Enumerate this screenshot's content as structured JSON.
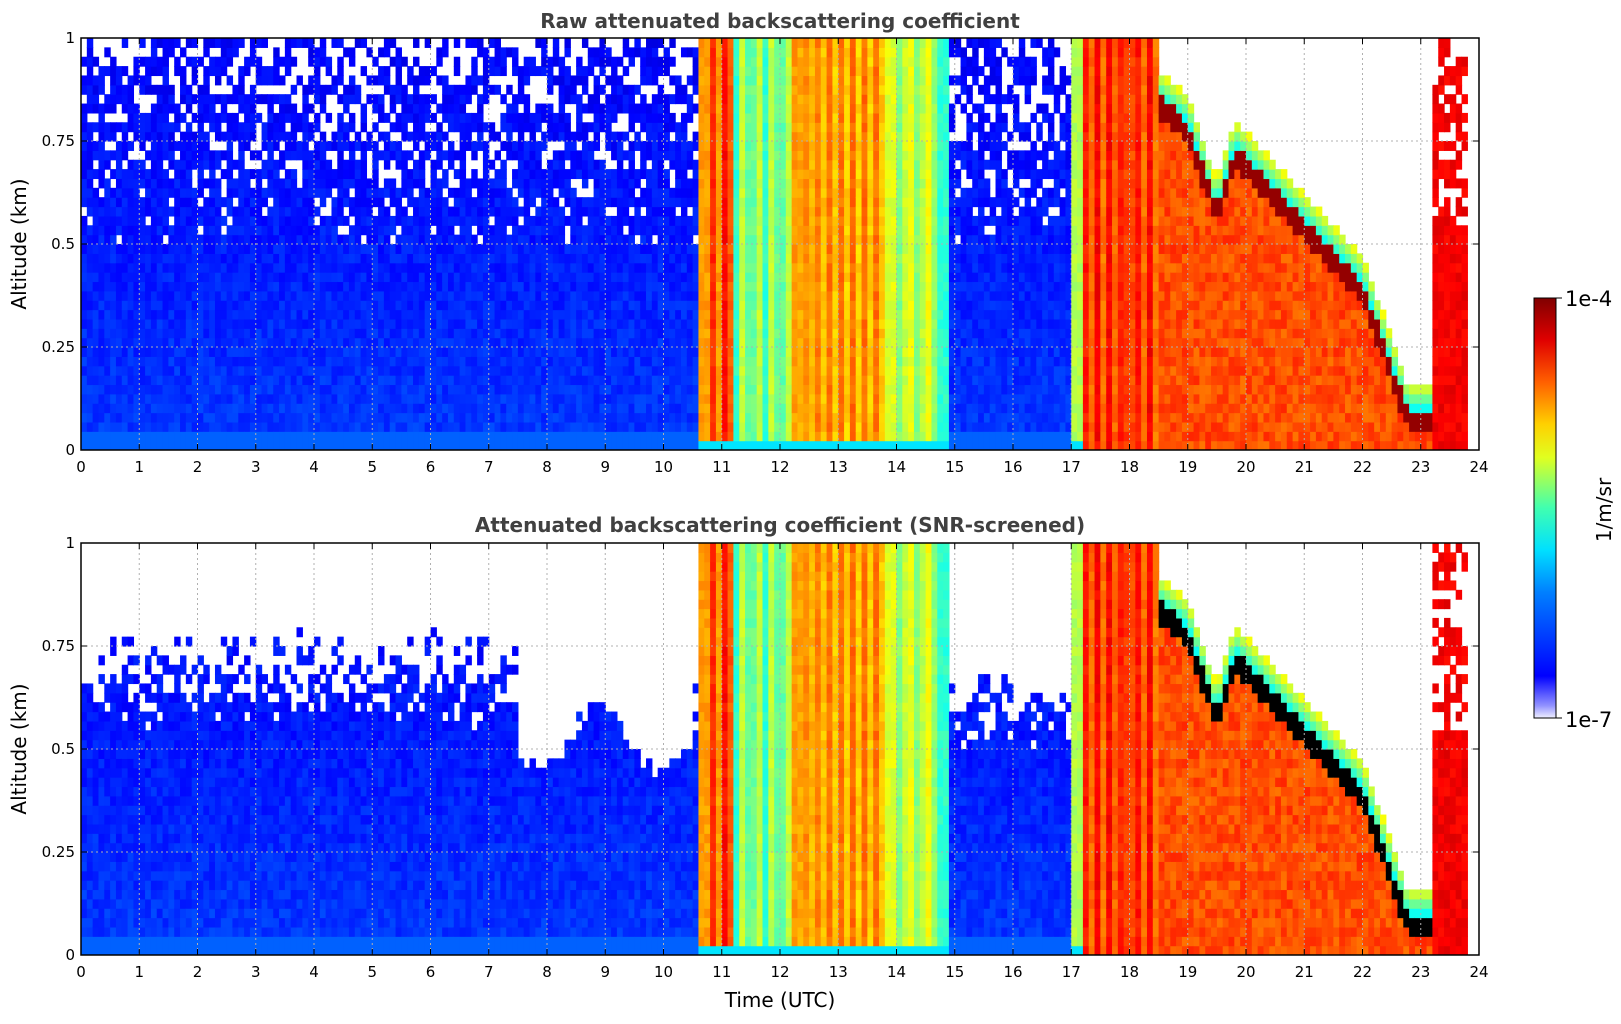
{
  "chart_data": [
    {
      "type": "heatmap",
      "title": "Raw attenuated backscattering coefficient",
      "xlabel": "",
      "ylabel": "Altitude (km)",
      "x_ticks": [
        "0",
        "1",
        "2",
        "3",
        "4",
        "5",
        "6",
        "7",
        "8",
        "9",
        "10",
        "11",
        "12",
        "13",
        "14",
        "15",
        "16",
        "17",
        "18",
        "19",
        "20",
        "21",
        "22",
        "23",
        "24"
      ],
      "y_ticks": [
        "0",
        "0.25",
        "0.5",
        "0.75",
        "1"
      ],
      "xlim": [
        0,
        24
      ],
      "ylim": [
        0,
        1
      ],
      "grid": true,
      "x_unit_values": [
        0,
        1,
        2,
        3,
        4,
        5,
        6,
        7,
        8,
        9,
        10,
        11,
        12,
        13,
        14,
        15,
        16,
        17,
        18,
        19,
        20,
        21,
        22,
        23,
        24
      ],
      "y_unit_values": [
        0,
        0.25,
        0.5,
        0.75,
        1
      ]
    },
    {
      "type": "heatmap",
      "title": "Attenuated backscattering coefficient (SNR-screened)",
      "xlabel": "Time (UTC)",
      "ylabel": "Altitude (km)",
      "x_ticks": [
        "0",
        "1",
        "2",
        "3",
        "4",
        "5",
        "6",
        "7",
        "8",
        "9",
        "10",
        "11",
        "12",
        "13",
        "14",
        "15",
        "16",
        "17",
        "18",
        "19",
        "20",
        "21",
        "22",
        "23",
        "24"
      ],
      "y_ticks": [
        "0",
        "0.25",
        "0.5",
        "0.75",
        "1"
      ],
      "xlim": [
        0,
        24
      ],
      "ylim": [
        0,
        1
      ],
      "grid": true,
      "x_unit_values": [
        0,
        1,
        2,
        3,
        4,
        5,
        6,
        7,
        8,
        9,
        10,
        11,
        12,
        13,
        14,
        15,
        16,
        17,
        18,
        19,
        20,
        21,
        22,
        23,
        24
      ],
      "y_unit_values": [
        0,
        0.25,
        0.5,
        0.75,
        1
      ]
    }
  ],
  "colorbar": {
    "max_label": "1e-4",
    "min_label": "1e-7",
    "unit_label": "1/m/sr",
    "scale": "log",
    "colormap": "jet"
  },
  "colors": {
    "title_color": "#404040",
    "grid_color": "#b0b0b0",
    "clear_air_blue": "#1040ff",
    "cloud_red": "#cc1100"
  }
}
